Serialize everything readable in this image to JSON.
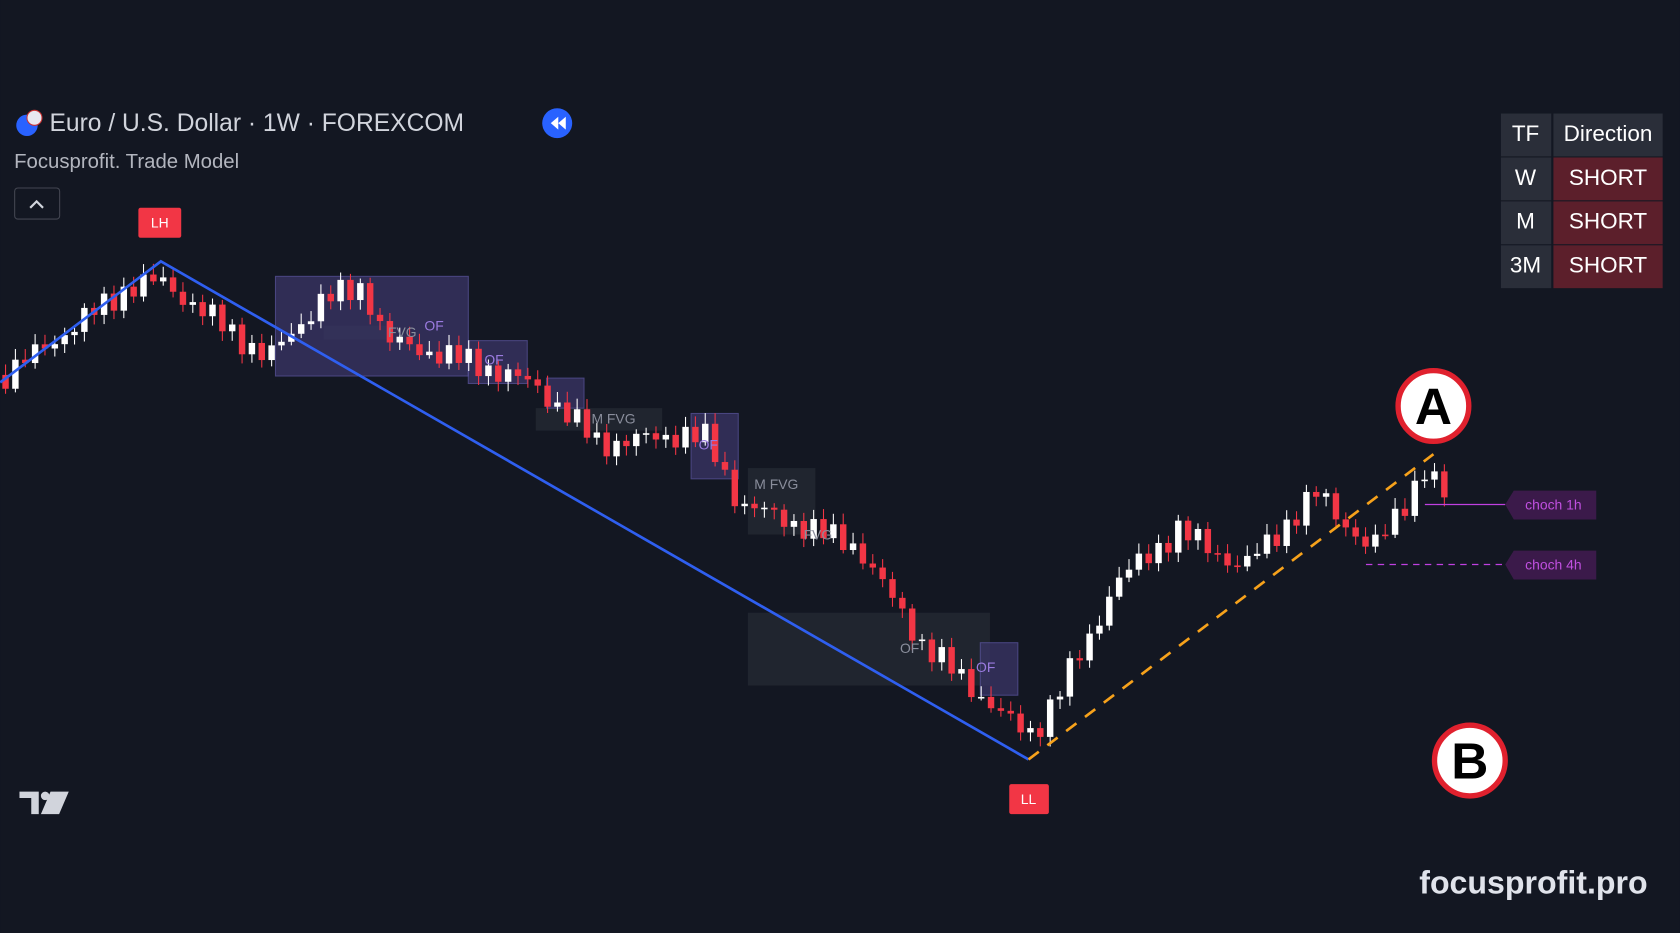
{
  "header": {
    "title": "Euro / U.S. Dollar · 1W · FOREXCOM",
    "indicator": "Focusprofit. Trade Model"
  },
  "table": {
    "columns": [
      "TF",
      "Direction"
    ],
    "rows": [
      [
        "W",
        "SHORT"
      ],
      [
        "M",
        "SHORT"
      ],
      [
        "3M",
        "SHORT"
      ]
    ]
  },
  "markers": {
    "swing_high": "LH",
    "swing_low": "LL"
  },
  "zone_labels": [
    "FVG",
    "OF",
    "OF",
    "M FVG",
    "OF",
    "M FVG",
    "FVG",
    "OF",
    "OF"
  ],
  "choch_labels": [
    "choch 1h",
    "choch 4h"
  ],
  "points": [
    "A",
    "B"
  ],
  "watermark": "focusprofit.pro"
}
